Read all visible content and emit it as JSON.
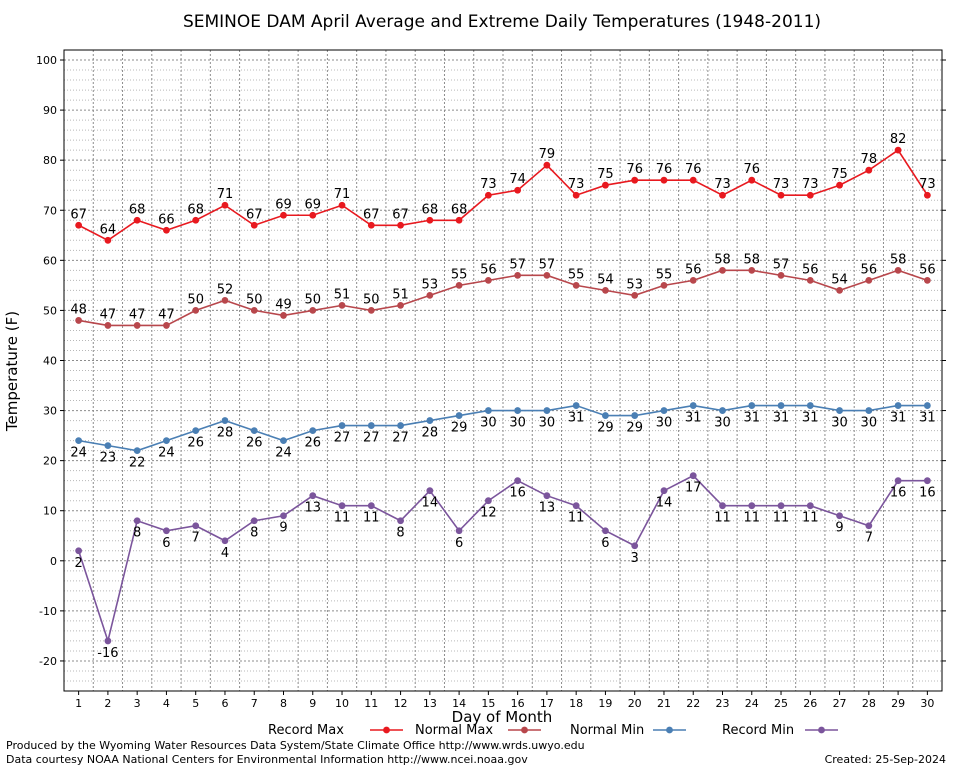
{
  "chart_data": {
    "type": "line",
    "title": "SEMINOE DAM April Average and Extreme Daily Temperatures (1948-2011)",
    "xlabel": "Day of Month",
    "ylabel": "Temperature (F)",
    "x": [
      1,
      2,
      3,
      4,
      5,
      6,
      7,
      8,
      9,
      10,
      11,
      12,
      13,
      14,
      15,
      16,
      17,
      18,
      19,
      20,
      21,
      22,
      23,
      24,
      25,
      26,
      27,
      28,
      29,
      30
    ],
    "x_tick_labels": [
      "1",
      "2",
      "3",
      "4",
      "5",
      "6",
      "7",
      "8",
      "9",
      "10",
      "11",
      "12",
      "13",
      "14",
      "15",
      "16",
      "17",
      "18",
      "19",
      "20",
      "21",
      "22",
      "23",
      "24",
      "25",
      "26",
      "27",
      "28",
      "29",
      "30"
    ],
    "ylim": [
      -26,
      102
    ],
    "y_ticks": [
      -20,
      -10,
      0,
      10,
      20,
      30,
      40,
      50,
      60,
      70,
      80,
      90,
      100
    ],
    "y_tick_labels": [
      "-20",
      "-10",
      "0",
      "10",
      "20",
      "30",
      "40",
      "50",
      "60",
      "70",
      "80",
      "90",
      "100"
    ],
    "grid": true,
    "legend_position": "bottom",
    "series": [
      {
        "name": "Record Max",
        "color": "#e8191f",
        "label_position": "above",
        "values": [
          67,
          64,
          68,
          66,
          68,
          71,
          67,
          69,
          69,
          71,
          67,
          67,
          68,
          68,
          73,
          74,
          79,
          73,
          75,
          76,
          76,
          76,
          73,
          76,
          73,
          73,
          75,
          78,
          82,
          73
        ]
      },
      {
        "name": "Normal Max",
        "color": "#b8474c",
        "label_position": "above",
        "values": [
          48,
          47,
          47,
          47,
          50,
          52,
          50,
          49,
          50,
          51,
          50,
          51,
          53,
          55,
          56,
          57,
          57,
          55,
          54,
          53,
          55,
          56,
          58,
          58,
          57,
          56,
          54,
          56,
          58,
          56
        ]
      },
      {
        "name": "Normal Min",
        "color": "#4a7fb4",
        "label_position": "below",
        "values": [
          24,
          23,
          22,
          24,
          26,
          28,
          26,
          24,
          26,
          27,
          27,
          27,
          28,
          29,
          30,
          30,
          30,
          31,
          29,
          29,
          30,
          31,
          30,
          31,
          31,
          31,
          30,
          30,
          31,
          31
        ]
      },
      {
        "name": "Record Min",
        "color": "#7b559c",
        "label_position": "below",
        "values": [
          2,
          -16,
          8,
          6,
          7,
          4,
          8,
          9,
          13,
          11,
          11,
          8,
          14,
          6,
          12,
          16,
          13,
          11,
          6,
          3,
          14,
          17,
          11,
          11,
          11,
          11,
          9,
          7,
          16,
          16
        ]
      }
    ]
  },
  "footer": {
    "produced_by": "Produced by the Wyoming Water Resources Data System/State Climate Office http://www.wrds.uwyo.edu",
    "courtesy": "Data courtesy NOAA National Centers for Environmental Information http://www.ncei.noaa.gov",
    "created": "Created:  25-Sep-2024"
  }
}
